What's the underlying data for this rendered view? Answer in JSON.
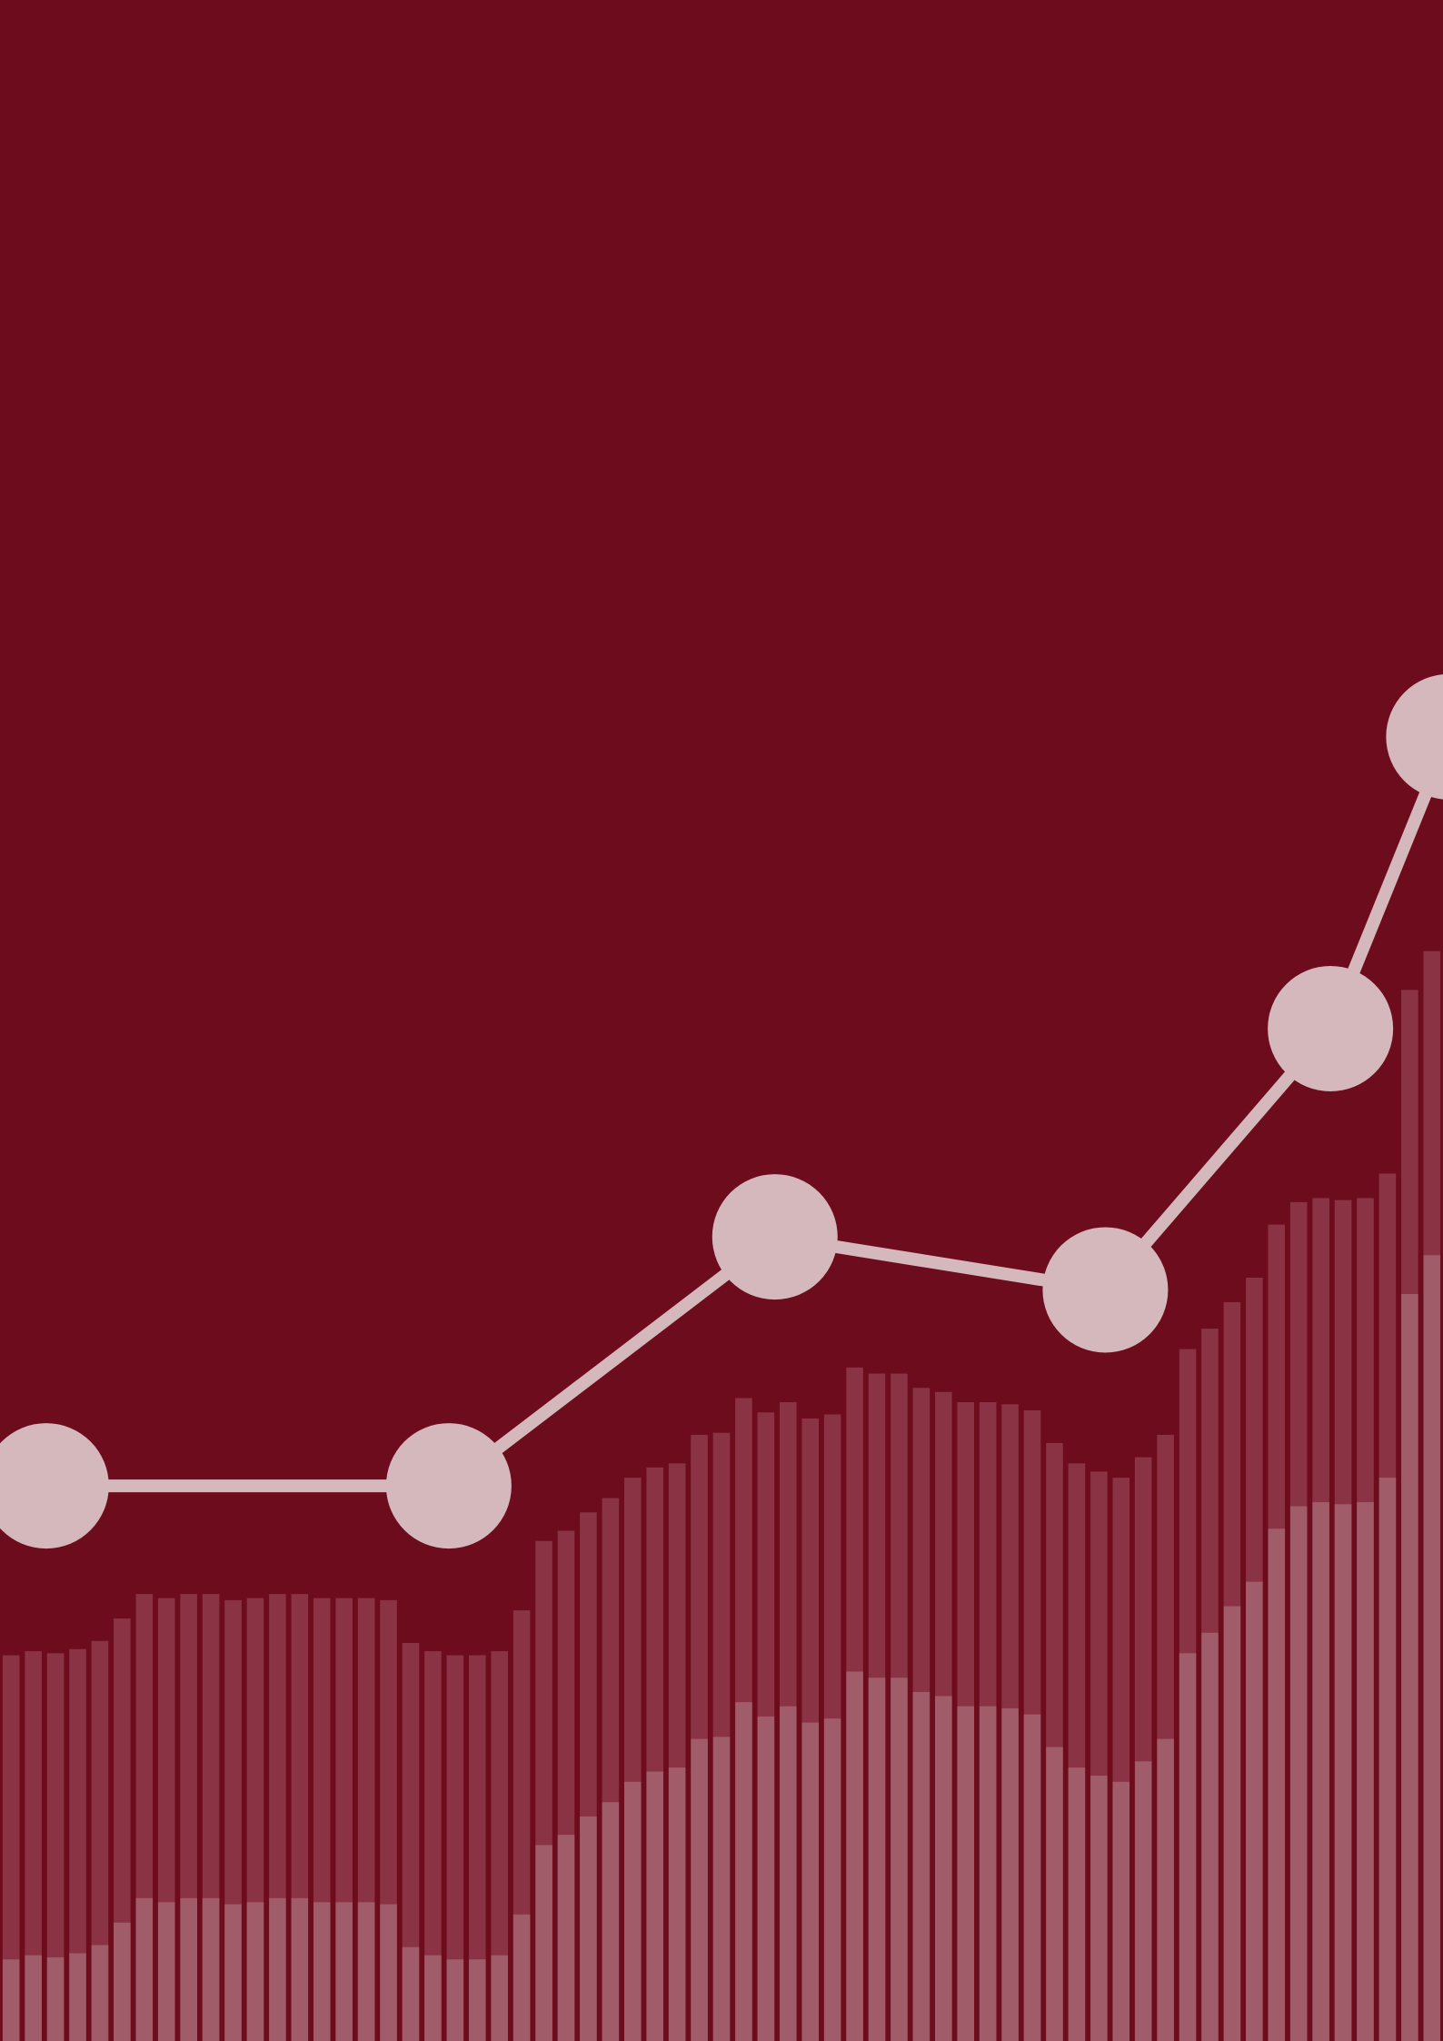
{
  "chart_data": [
    {
      "type": "bar",
      "categories": [
        null,
        null,
        null,
        null,
        null,
        null,
        null,
        null,
        null,
        null,
        null,
        null,
        null,
        null,
        null,
        null,
        null,
        null,
        null,
        null,
        null,
        null,
        null,
        null,
        null,
        null,
        null,
        null,
        null,
        null,
        null,
        null,
        null,
        null,
        null,
        null,
        null,
        null,
        null,
        null,
        null,
        null,
        null,
        null,
        null,
        null,
        null,
        null,
        null,
        null,
        null,
        null,
        null,
        null,
        null,
        null,
        null,
        null,
        null,
        null,
        null,
        null,
        null,
        null,
        null
      ],
      "ylim": [
        0,
        100
      ],
      "series": [
        {
          "color": "#8a3344",
          "values": [
            18.9,
            19.1,
            19.0,
            19.2,
            19.6,
            20.7,
            21.9,
            21.7,
            21.9,
            21.9,
            21.6,
            21.7,
            21.9,
            21.9,
            21.7,
            21.7,
            21.7,
            21.6,
            19.5,
            19.1,
            18.9,
            18.9,
            19.1,
            21.1,
            24.5,
            25.0,
            25.9,
            26.6,
            27.6,
            28.1,
            28.3,
            29.7,
            29.8,
            31.5,
            30.8,
            31.3,
            30.5,
            30.7,
            33.0,
            32.7,
            32.7,
            32.0,
            31.8,
            31.3,
            31.3,
            31.2,
            30.9,
            29.3,
            28.3,
            27.9,
            27.6,
            28.6,
            29.7,
            33.9,
            34.9,
            36.2,
            37.4,
            40.0,
            41.1,
            41.3,
            41.2,
            41.3,
            42.5,
            51.5,
            53.4
          ]
        },
        {
          "color": "#a05c68",
          "values": [
            4.0,
            4.2,
            4.1,
            4.3,
            4.7,
            5.8,
            7.0,
            6.8,
            7.0,
            7.0,
            6.7,
            6.8,
            7.0,
            7.0,
            6.8,
            6.8,
            6.8,
            6.7,
            4.6,
            4.2,
            4.0,
            4.0,
            4.2,
            6.2,
            9.6,
            10.1,
            11.0,
            11.7,
            12.7,
            13.2,
            13.4,
            14.8,
            14.9,
            16.6,
            15.9,
            16.4,
            15.6,
            15.8,
            18.1,
            17.8,
            17.8,
            17.1,
            16.9,
            16.4,
            16.4,
            16.3,
            16.0,
            14.4,
            13.4,
            13.0,
            12.7,
            13.7,
            14.8,
            19.0,
            20.0,
            21.3,
            22.5,
            25.1,
            26.2,
            26.4,
            26.3,
            26.4,
            27.6,
            36.6,
            38.5
          ]
        }
      ]
    },
    {
      "type": "line",
      "color": "#d4b8bc",
      "xlim": [
        0,
        100
      ],
      "ylim": [
        0,
        100
      ],
      "x": [
        3.2,
        31.1,
        53.7,
        76.6,
        92.2,
        100.4
      ],
      "values": [
        27.2,
        27.2,
        39.4,
        36.8,
        49.6,
        63.9
      ]
    }
  ]
}
